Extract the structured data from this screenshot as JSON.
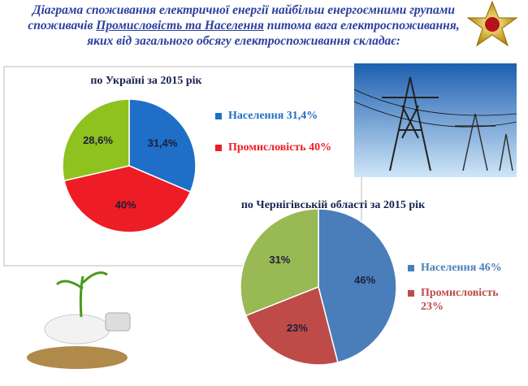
{
  "header": {
    "title_line1": "Діаграма споживання електричної енергії найбільш енергоємними групами",
    "title_line2_start": "споживачів",
    "title_line2_underlined": "Промисловість та Населення",
    "title_line2_end": "питома вага електроспоживання,",
    "title_line3": "яких від загального обсягу електроспоживання складає:"
  },
  "chart_data": [
    {
      "type": "pie",
      "title": "по Україні за 2015 рік",
      "categories": [
        "Населення 31,4%",
        "Промисловість 40%",
        null
      ],
      "values": [
        31.4,
        40,
        28.6
      ],
      "value_labels": [
        "31,4%",
        "40%",
        "28,6%"
      ],
      "colors": [
        "#1f6fc8",
        "#ee1c24",
        "#8dc21f"
      ]
    },
    {
      "type": "pie",
      "title": "по Чернігівській області за 2015 рік",
      "categories": [
        "Населення 46%",
        "Промисловість 23%",
        null
      ],
      "values": [
        46,
        23,
        31
      ],
      "value_labels": [
        "46%",
        "23%",
        "31%"
      ],
      "colors": [
        "#4a7ebb",
        "#be4b48",
        "#98b954"
      ]
    }
  ]
}
